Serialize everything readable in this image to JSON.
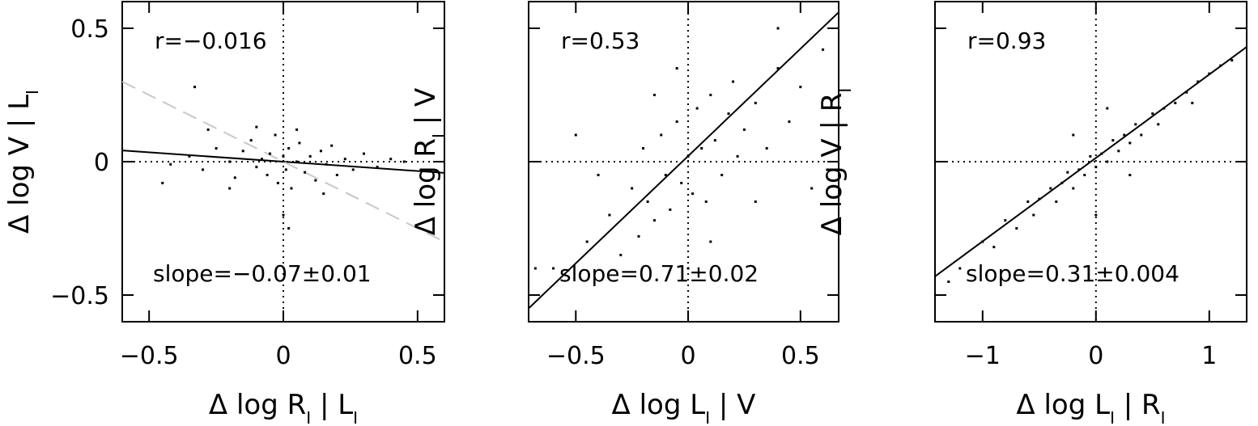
{
  "chart_data": [
    {
      "type": "scatter",
      "color": "#000000",
      "xlabel": [
        "Δ log R",
        "I",
        " | L",
        "I"
      ],
      "ylabel": [
        "Δ log V | L",
        "I"
      ],
      "r_text": "r=−0.016",
      "slope_text": "slope=−0.07±0.01",
      "xlim": [
        -0.6,
        0.6
      ],
      "ylim": [
        -0.6,
        0.6
      ],
      "xticks": [
        {
          "value": -0.5,
          "label": "−0.5"
        },
        0,
        0.5
      ],
      "yticks": [
        {
          "value": -0.5,
          "label": "−0.5"
        },
        0,
        0.5
      ],
      "ytick_labels": true,
      "zero_lines": true,
      "x": [
        -0.35,
        -0.3,
        -0.25,
        -0.2,
        -0.18,
        -0.15,
        -0.12,
        -0.1,
        -0.08,
        -0.06,
        -0.05,
        -0.03,
        -0.02,
        0,
        0.01,
        0.02,
        0.03,
        0.05,
        0.06,
        0.08,
        0.1,
        0.12,
        0.14,
        0.16,
        0.18,
        0.2,
        0.23,
        0.26,
        0.3,
        0.35,
        0.4,
        -0.42,
        -0.28,
        0.0,
        0.02,
        -0.1,
        0.05,
        0.15,
        -0.2,
        -0.33,
        -0.45,
        0.45
      ],
      "values": [
        0.02,
        -0.03,
        0.05,
        0.0,
        -0.06,
        0.04,
        0.08,
        -0.02,
        0.01,
        -0.05,
        0.03,
        0.1,
        -0.08,
        0.02,
        -0.03,
        0.05,
        -0.1,
        0.0,
        0.07,
        -0.04,
        0.02,
        -0.07,
        0.04,
        -0.01,
        0.06,
        -0.05,
        0.01,
        -0.03,
        0.03,
        -0.02,
        0.01,
        -0.01,
        0.12,
        -0.2,
        -0.25,
        0.13,
        0.12,
        -0.12,
        -0.1,
        0.28,
        -0.08,
        0.0
      ],
      "lines": [
        {
          "x": [
            -0.6,
            0.6
          ],
          "y": [
            0.042,
            -0.042
          ],
          "color": "#000000",
          "dash": false
        },
        {
          "x": [
            -0.6,
            0.6
          ],
          "y": [
            0.3,
            -0.3
          ],
          "color": "#c8c8c8",
          "dash": true
        }
      ]
    },
    {
      "type": "scatter",
      "color": "#000000",
      "xlabel": [
        "Δ log L",
        "I",
        " | V"
      ],
      "ylabel": [
        "Δ log R",
        "I",
        " | V"
      ],
      "r_text": "r=0.53",
      "slope_text": "slope=0.71±0.02",
      "xlim": [
        -0.71,
        0.67
      ],
      "ylim": [
        -0.6,
        0.6
      ],
      "xticks": [
        {
          "value": -0.5,
          "label": "−0.5"
        },
        0,
        0.5
      ],
      "yticks": [
        -0.5,
        0,
        0.5
      ],
      "ytick_labels": false,
      "zero_lines": true,
      "x": [
        -0.45,
        -0.35,
        -0.3,
        -0.25,
        -0.22,
        -0.2,
        -0.18,
        -0.15,
        -0.12,
        -0.1,
        -0.08,
        -0.05,
        -0.03,
        0,
        0.02,
        0.04,
        0.06,
        0.08,
        0.1,
        0.12,
        0.15,
        0.18,
        0.2,
        0.22,
        0.25,
        0.3,
        0.35,
        0.4,
        0.45,
        0.5,
        -0.6,
        -0.5,
        0.6,
        0.55,
        -0.05,
        0.0,
        -0.15,
        0.1,
        -0.4,
        0.3,
        -0.68,
        0.4
      ],
      "values": [
        -0.3,
        -0.2,
        -0.35,
        -0.1,
        -0.28,
        0.05,
        -0.15,
        -0.22,
        0.1,
        -0.05,
        -0.18,
        0.15,
        -0.08,
        0.02,
        -0.12,
        0.2,
        0.05,
        -0.15,
        0.25,
        0.08,
        -0.05,
        0.18,
        0.3,
        0.02,
        0.12,
        0.22,
        0.05,
        0.35,
        0.15,
        0.28,
        -0.4,
        0.1,
        0.42,
        -0.1,
        0.35,
        -0.4,
        0.25,
        -0.3,
        -0.05,
        -0.15,
        -0.4,
        0.5
      ],
      "lines": [
        {
          "x": [
            -0.71,
            0.67
          ],
          "y": [
            -0.55,
            0.56
          ],
          "color": "#000000",
          "dash": false
        }
      ]
    },
    {
      "type": "scatter",
      "color": "#000000",
      "xlabel": [
        "Δ log L",
        "I",
        " | R",
        "I"
      ],
      "ylabel": [
        "Δ log V | R",
        "I"
      ],
      "r_text": "r=0.93",
      "slope_text": "slope=0.31±0.004",
      "xlim": [
        -1.42,
        1.33
      ],
      "ylim": [
        -0.6,
        0.6
      ],
      "xticks": [
        {
          "value": -1,
          "label": "−1"
        },
        0,
        1
      ],
      "yticks": [
        -0.5,
        0,
        0.5
      ],
      "ytick_labels": false,
      "zero_lines": true,
      "x": [
        -1.2,
        -1,
        -0.9,
        -0.8,
        -0.7,
        -0.6,
        -0.55,
        -0.5,
        -0.4,
        -0.35,
        -0.3,
        -0.25,
        -0.2,
        -0.15,
        -0.1,
        -0.05,
        0,
        0.05,
        0.1,
        0.15,
        0.2,
        0.25,
        0.3,
        0.35,
        0.4,
        0.5,
        0.55,
        0.6,
        0.7,
        0.8,
        0.9,
        1.0,
        1.1,
        1.2,
        -1.3,
        0.0,
        0.1,
        -0.2,
        0.3,
        0.85
      ],
      "values": [
        -0.4,
        -0.3,
        -0.32,
        -0.22,
        -0.25,
        -0.15,
        -0.2,
        -0.14,
        -0.1,
        -0.15,
        -0.08,
        -0.04,
        -0.1,
        -0.03,
        -0.05,
        0.02,
        -0.02,
        0.03,
        0.0,
        0.08,
        0.04,
        0.1,
        0.07,
        0.14,
        0.1,
        0.18,
        0.14,
        0.2,
        0.22,
        0.26,
        0.3,
        0.33,
        0.36,
        0.38,
        -0.45,
        -0.2,
        0.2,
        0.1,
        -0.05,
        0.22
      ],
      "lines": [
        {
          "x": [
            -1.42,
            1.33
          ],
          "y": [
            -0.43,
            0.43
          ],
          "color": "#000000",
          "dash": false
        }
      ]
    }
  ]
}
